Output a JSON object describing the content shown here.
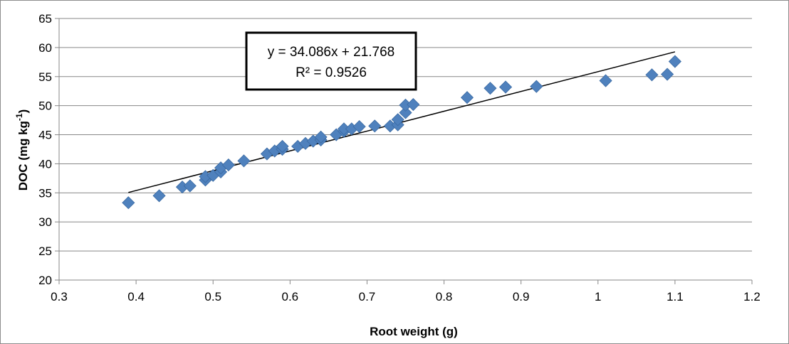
{
  "chart_data": {
    "type": "scatter",
    "xlabel": "Root weight (g)",
    "ylabel": "DOC (mg kg",
    "ylabel_sup": "-1",
    "ylabel_close": ")",
    "xlim": [
      0.3,
      1.2
    ],
    "ylim": [
      20,
      65
    ],
    "xticks": [
      0.3,
      0.4,
      0.5,
      0.6,
      0.7,
      0.8,
      0.9,
      1,
      1.1,
      1.2
    ],
    "xtick_labels": [
      "0.3",
      "0.4",
      "0.5",
      "0.6",
      "0.7",
      "0.8",
      "0.9",
      "1",
      "1.1",
      "1.2"
    ],
    "yticks": [
      20,
      25,
      30,
      35,
      40,
      45,
      50,
      55,
      60,
      65
    ],
    "ytick_labels": [
      "20",
      "25",
      "30",
      "35",
      "40",
      "45",
      "50",
      "55",
      "60",
      "65"
    ],
    "grid": "horizontal",
    "marker_color": "#4f81bd",
    "marker_edge_color": "#3a6aa3",
    "trendline": {
      "slope": 34.086,
      "intercept": 21.768,
      "x_range": [
        0.39,
        1.1
      ],
      "color": "#000000",
      "equation": "y = 34.086x + 21.768",
      "r_squared": "R² = 0.9526"
    },
    "points": [
      {
        "x": 0.39,
        "y": 33.3
      },
      {
        "x": 0.43,
        "y": 34.5
      },
      {
        "x": 0.46,
        "y": 36.0
      },
      {
        "x": 0.47,
        "y": 36.2
      },
      {
        "x": 0.49,
        "y": 37.2
      },
      {
        "x": 0.49,
        "y": 37.8
      },
      {
        "x": 0.5,
        "y": 38.0
      },
      {
        "x": 0.51,
        "y": 38.6
      },
      {
        "x": 0.51,
        "y": 39.3
      },
      {
        "x": 0.52,
        "y": 39.8
      },
      {
        "x": 0.54,
        "y": 40.5
      },
      {
        "x": 0.57,
        "y": 41.7
      },
      {
        "x": 0.58,
        "y": 42.2
      },
      {
        "x": 0.59,
        "y": 42.5
      },
      {
        "x": 0.59,
        "y": 43.0
      },
      {
        "x": 0.61,
        "y": 43.0
      },
      {
        "x": 0.62,
        "y": 43.5
      },
      {
        "x": 0.63,
        "y": 43.9
      },
      {
        "x": 0.64,
        "y": 44.1
      },
      {
        "x": 0.64,
        "y": 44.6
      },
      {
        "x": 0.66,
        "y": 45.0
      },
      {
        "x": 0.67,
        "y": 45.6
      },
      {
        "x": 0.67,
        "y": 46.0
      },
      {
        "x": 0.68,
        "y": 46.0
      },
      {
        "x": 0.69,
        "y": 46.4
      },
      {
        "x": 0.71,
        "y": 46.5
      },
      {
        "x": 0.73,
        "y": 46.5
      },
      {
        "x": 0.74,
        "y": 46.7
      },
      {
        "x": 0.74,
        "y": 47.6
      },
      {
        "x": 0.75,
        "y": 48.8
      },
      {
        "x": 0.75,
        "y": 50.1
      },
      {
        "x": 0.76,
        "y": 50.2
      },
      {
        "x": 0.83,
        "y": 51.4
      },
      {
        "x": 0.86,
        "y": 53.0
      },
      {
        "x": 0.88,
        "y": 53.2
      },
      {
        "x": 0.92,
        "y": 53.3
      },
      {
        "x": 1.01,
        "y": 54.3
      },
      {
        "x": 1.07,
        "y": 55.3
      },
      {
        "x": 1.09,
        "y": 55.4
      },
      {
        "x": 1.1,
        "y": 57.6
      }
    ]
  }
}
